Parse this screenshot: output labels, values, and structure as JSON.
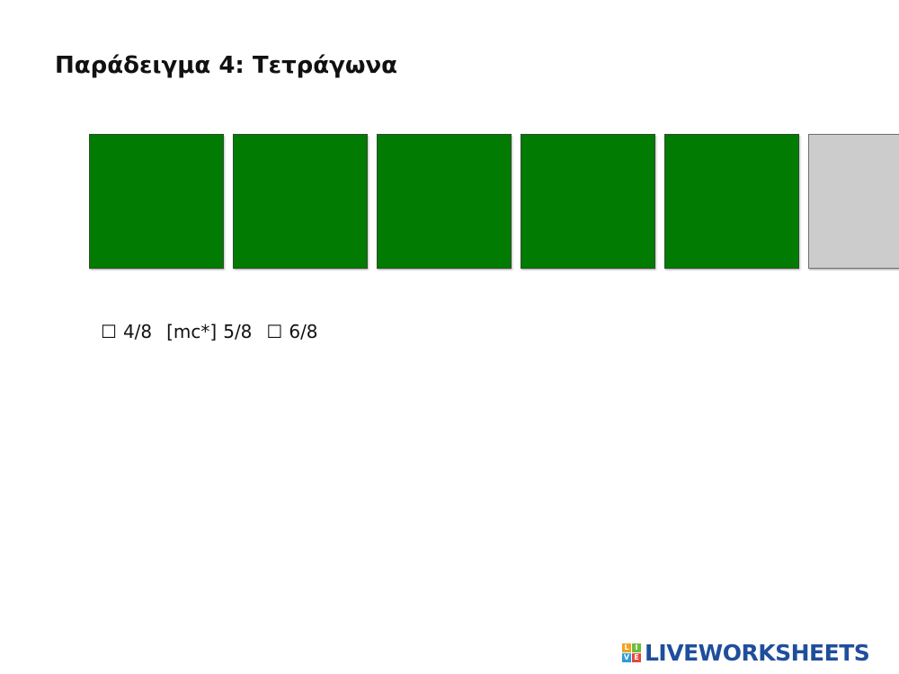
{
  "title": "Παράδειγμα 4: Τετράγωνα",
  "squares": [
    {
      "state": "filled",
      "color": "#027b02"
    },
    {
      "state": "filled",
      "color": "#027b02"
    },
    {
      "state": "filled",
      "color": "#027b02"
    },
    {
      "state": "filled",
      "color": "#027b02"
    },
    {
      "state": "filled",
      "color": "#027b02"
    },
    {
      "state": "empty",
      "color": "#cccccc"
    }
  ],
  "options": [
    {
      "marker": "☐",
      "label": "4/8"
    },
    {
      "marker": "[mc*]",
      "label": "5/8"
    },
    {
      "marker": "☐",
      "label": "6/8"
    }
  ],
  "logo": {
    "text": "LIVEWORKSHEETS",
    "mark_letters": [
      "L",
      "I",
      "V",
      "E"
    ],
    "mark_colors": [
      "#f4a11d",
      "#6cbf3c",
      "#2d9bd8",
      "#e64640"
    ],
    "text_color": "#1f4e9c"
  }
}
